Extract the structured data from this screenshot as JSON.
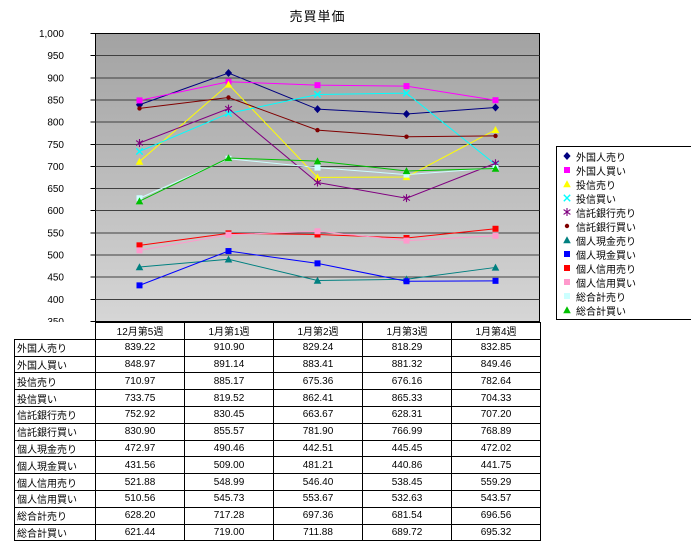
{
  "chart_data": {
    "type": "line",
    "title": "売買単価",
    "categories": [
      "12月第5週",
      "1月第1週",
      "1月第2週",
      "1月第3週",
      "1月第4週"
    ],
    "ylim": [
      350,
      1000
    ],
    "ytick_step": 50,
    "grid": true,
    "legend_position": "right",
    "plot_bg_gradient": [
      "#A2A2A2",
      "#D6D6D6"
    ],
    "gridline_color": "#404040",
    "series": [
      {
        "name": "外国人売り",
        "color": "#000080",
        "marker": "diamond",
        "values": [
          839.22,
          910.9,
          829.24,
          818.29,
          832.85
        ]
      },
      {
        "name": "外国人買い",
        "color": "#FF00FF",
        "marker": "square",
        "values": [
          848.97,
          891.14,
          883.41,
          881.32,
          849.46
        ]
      },
      {
        "name": "投信売り",
        "color": "#FFFF00",
        "marker": "triangle",
        "values": [
          710.97,
          885.17,
          675.36,
          676.16,
          782.64
        ]
      },
      {
        "name": "投信買い",
        "color": "#00FFFF",
        "marker": "x",
        "values": [
          733.75,
          819.52,
          862.41,
          865.33,
          704.33
        ]
      },
      {
        "name": "信託銀行売り",
        "color": "#800080",
        "marker": "asterisk",
        "values": [
          752.92,
          830.45,
          663.67,
          628.31,
          707.2
        ]
      },
      {
        "name": "信託銀行買い",
        "color": "#800000",
        "marker": "circle",
        "values": [
          830.9,
          855.57,
          781.9,
          766.99,
          768.89
        ]
      },
      {
        "name": "個人現金売り",
        "color": "#008080",
        "marker": "triangle",
        "values": [
          472.97,
          490.46,
          442.51,
          445.45,
          472.02
        ]
      },
      {
        "name": "個人現金買い",
        "color": "#0000FF",
        "marker": "square",
        "values": [
          431.56,
          509.0,
          481.21,
          440.86,
          441.75
        ]
      },
      {
        "name": "個人信用売り",
        "color": "#FF0000",
        "marker": "square",
        "values": [
          521.88,
          548.99,
          546.4,
          538.45,
          559.29
        ]
      },
      {
        "name": "個人信用買い",
        "color": "#FF99CC",
        "marker": "square",
        "values": [
          510.56,
          545.73,
          553.67,
          532.63,
          543.57
        ]
      },
      {
        "name": "総合計売り",
        "color": "#CCFFFF",
        "marker": "square",
        "values": [
          628.2,
          717.28,
          697.36,
          681.54,
          696.56
        ]
      },
      {
        "name": "総合計買い",
        "color": "#00C000",
        "marker": "triangle",
        "values": [
          621.44,
          719.0,
          711.88,
          689.72,
          695.32
        ]
      }
    ]
  }
}
